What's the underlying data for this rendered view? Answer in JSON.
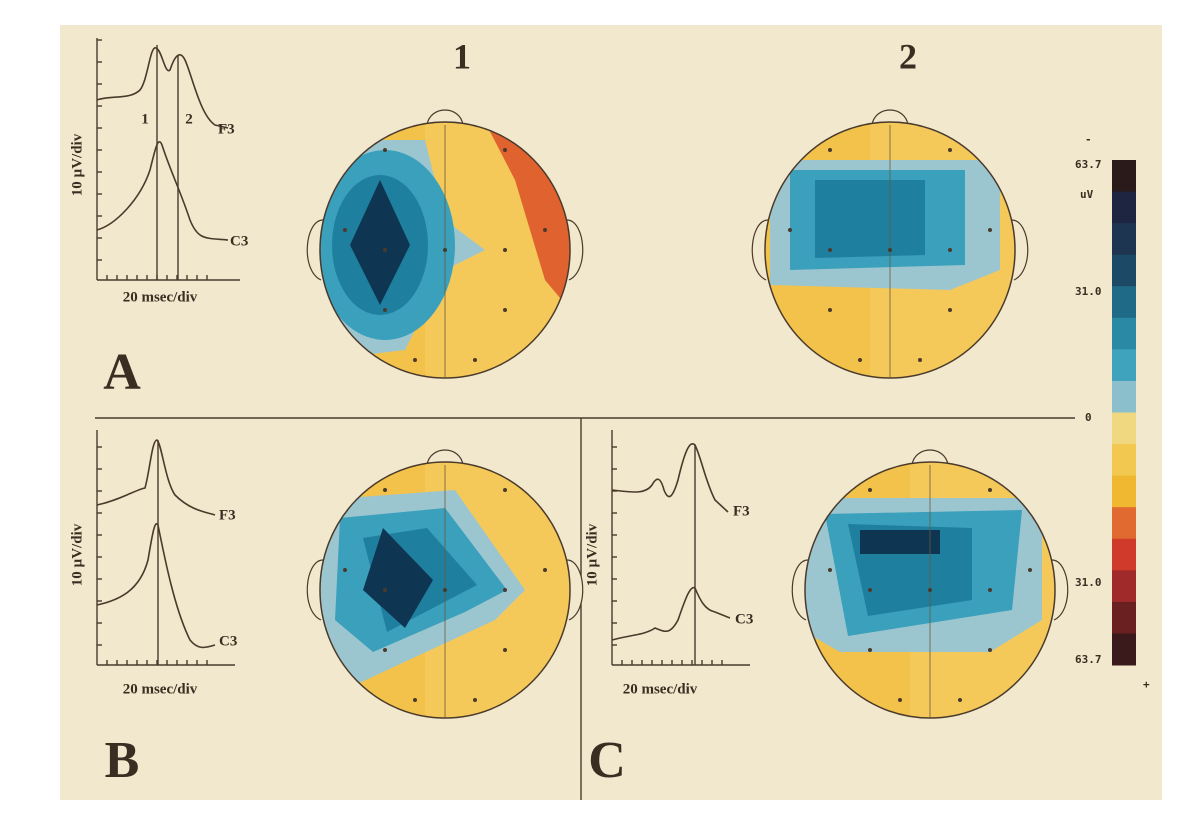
{
  "columns": [
    "1",
    "2"
  ],
  "panels": [
    {
      "label": "A",
      "y_axis": "10 µV/div",
      "x_axis": "20 msec/div",
      "traces": [
        "F3",
        "C3"
      ],
      "markers": [
        "1",
        "2"
      ]
    },
    {
      "label": "B",
      "y_axis": "10 µV/div",
      "x_axis": "20 msec/div",
      "traces": [
        "F3",
        "C3"
      ]
    },
    {
      "label": "C",
      "y_axis": "10 µV/div",
      "x_axis": "20 msec/div",
      "traces": [
        "F3",
        "C3"
      ]
    }
  ],
  "colorbar": {
    "top_sign": "-",
    "unit": "uV",
    "labels": [
      "63.7",
      "31.0",
      "0",
      "31.0",
      "63.7"
    ],
    "bottom_sign": "+"
  }
}
